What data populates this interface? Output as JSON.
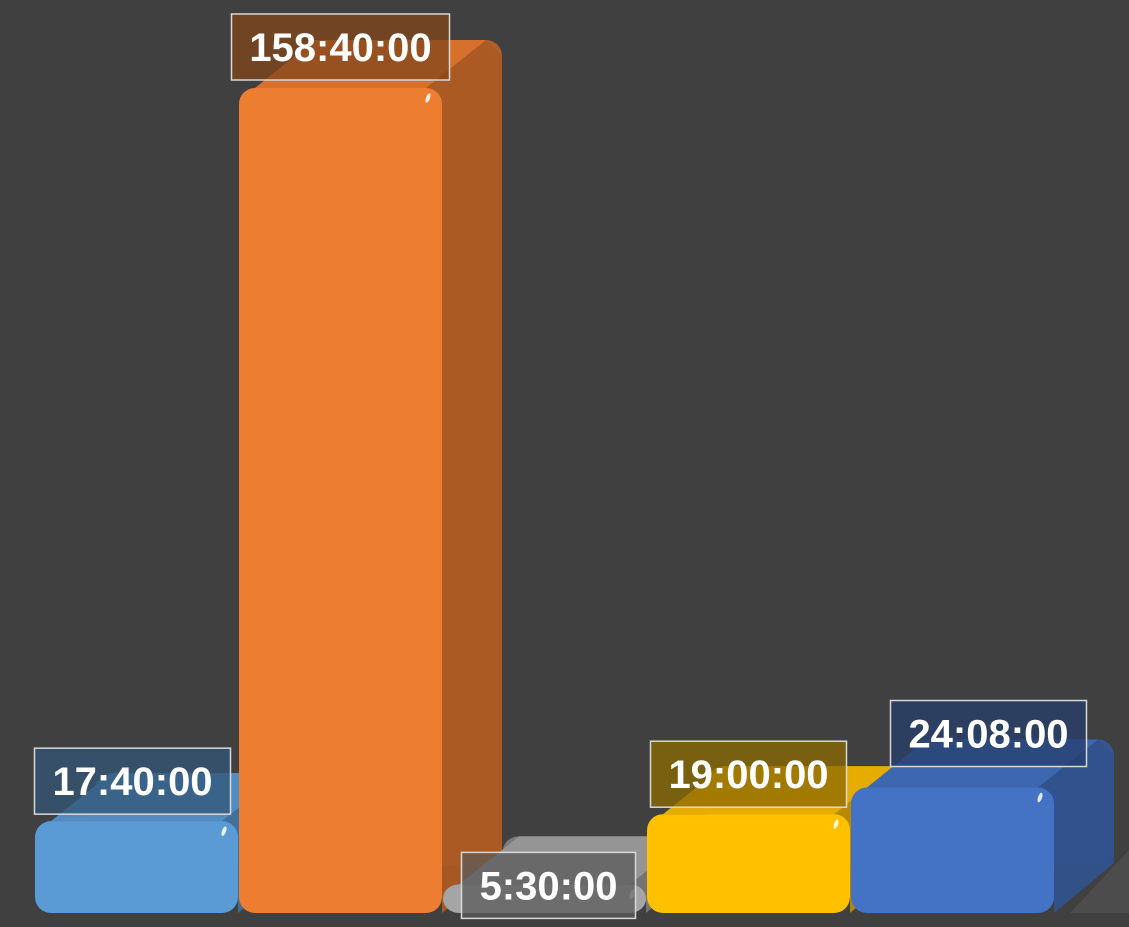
{
  "chart_data": {
    "type": "bar",
    "categories": [
      "",
      "",
      "",
      "",
      ""
    ],
    "values_seconds": [
      63600,
      571200,
      19800,
      68400,
      86880
    ],
    "data_labels": [
      "17:40:00",
      "158:40:00",
      "5:30:00",
      "19:00:00",
      "24:08:00"
    ],
    "title": "",
    "xlabel": "",
    "ylabel": "",
    "grid": false,
    "legend": "none",
    "style": "3d-rounded-column",
    "colors": [
      "#5B9BD5",
      "#ED7D31",
      "#A5A5A5",
      "#FFC000",
      "#4472C4"
    ]
  }
}
